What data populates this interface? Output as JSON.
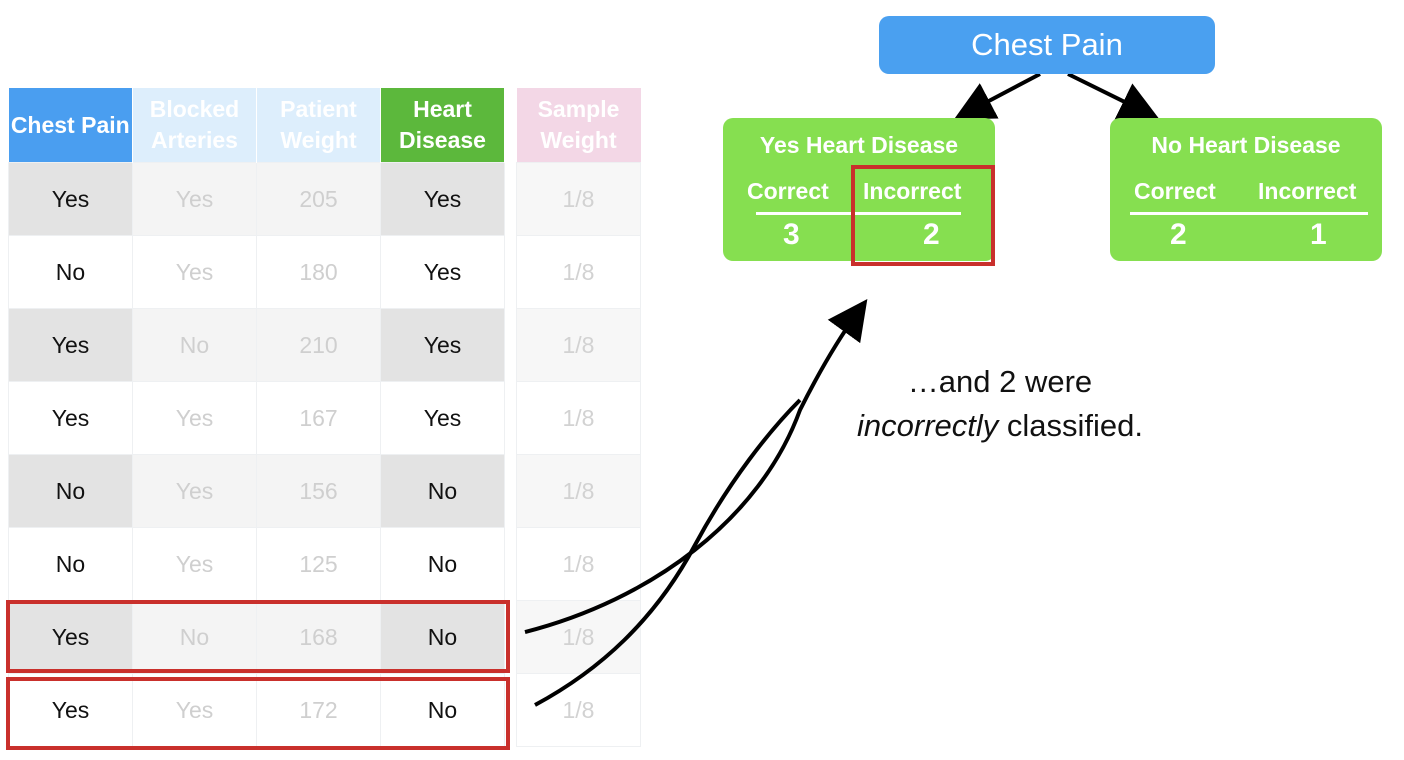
{
  "table": {
    "headers": [
      "Chest Pain",
      "Blocked Arteries",
      "Patient Weight",
      "Heart Disease"
    ],
    "header_colors": [
      "#4a9ef0",
      "#ddeefc",
      "#ddeefc",
      "#5cb83c"
    ],
    "rows": [
      [
        "Yes",
        "Yes",
        "205",
        "Yes"
      ],
      [
        "No",
        "Yes",
        "180",
        "Yes"
      ],
      [
        "Yes",
        "No",
        "210",
        "Yes"
      ],
      [
        "Yes",
        "Yes",
        "167",
        "Yes"
      ],
      [
        "No",
        "Yes",
        "156",
        "No"
      ],
      [
        "No",
        "Yes",
        "125",
        "No"
      ],
      [
        "Yes",
        "No",
        "168",
        "No"
      ],
      [
        "Yes",
        "Yes",
        "172",
        "No"
      ]
    ],
    "highlighted_rows": [
      7,
      8
    ]
  },
  "sample_weight": {
    "header": "Sample Weight",
    "header_color": "#f3d7e6",
    "values": [
      "1/8",
      "1/8",
      "1/8",
      "1/8",
      "1/8",
      "1/8",
      "1/8",
      "1/8"
    ]
  },
  "tree": {
    "root": {
      "label": "Chest Pain",
      "color": "#4aa0f0"
    },
    "leaf_color": "#86df50",
    "leaves": [
      {
        "title": "Yes Heart Disease",
        "correct_label": "Correct",
        "incorrect_label": "Incorrect",
        "correct": "3",
        "incorrect": "2"
      },
      {
        "title": "No Heart Disease",
        "correct_label": "Correct",
        "incorrect_label": "Incorrect",
        "correct": "2",
        "incorrect": "1"
      }
    ],
    "highlighted": "Yes Heart Disease / Incorrect"
  },
  "annotation": {
    "line1": "…and 2 were",
    "emphasis": "incorrectly",
    "rest": " classified."
  },
  "highlight_color": "#c9302c"
}
